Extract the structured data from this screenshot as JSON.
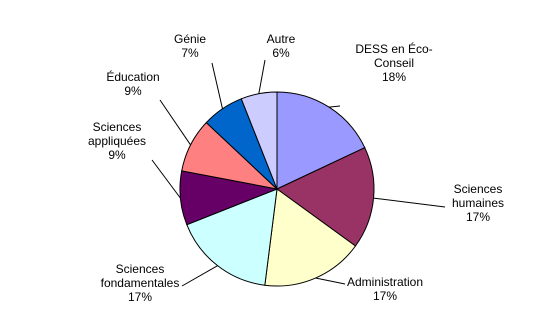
{
  "chart_data": {
    "type": "pie",
    "categories": [
      "DESS en Éco-Conseil",
      "Sciences humaines",
      "Administration",
      "Sciences fondamentales",
      "Sciences appliquées",
      "Éducation",
      "Génie",
      "Autre"
    ],
    "values": [
      18,
      17,
      17,
      17,
      9,
      9,
      7,
      6
    ],
    "value_labels": [
      "18%",
      "17%",
      "17%",
      "17%",
      "9%",
      "9%",
      "7%",
      "6%"
    ],
    "colors": [
      "#9999ff",
      "#993366",
      "#ffffcc",
      "#ccffff",
      "#660066",
      "#ff8080",
      "#0066cc",
      "#ccccff"
    ]
  }
}
